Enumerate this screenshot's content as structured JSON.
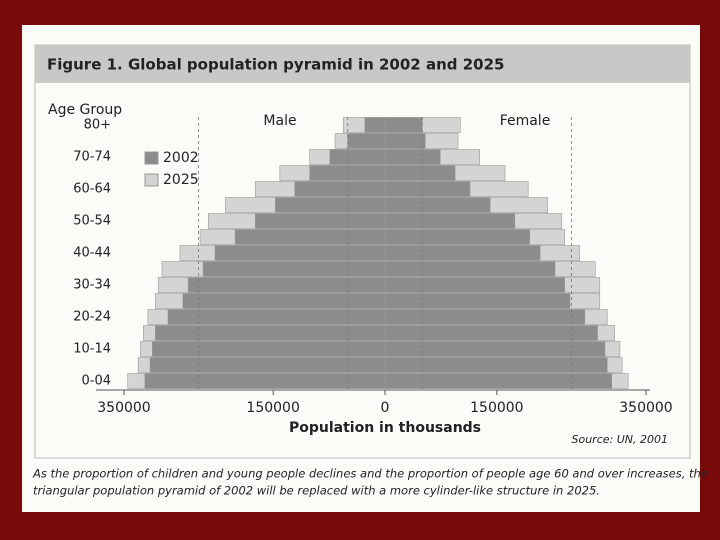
{
  "chart_data": {
    "type": "pyramid",
    "title": "Figure 1.  Global population pyramid in 2002 and 2025",
    "y_label": "Age Group",
    "x_label": "Population in thousands",
    "male_label": "Male",
    "female_label": "Female",
    "source": "Source: UN, 2001",
    "caption": [
      "As the proportion of children and young people declines and the proportion of people age 60 and over increases, the",
      "triangular population pyramid of 2002 will be replaced with a more cylinder-like structure in 2025."
    ],
    "categories": [
      "0-04",
      null,
      "10-14",
      null,
      "20-24",
      null,
      "30-34",
      null,
      "40-44",
      null,
      "50-54",
      null,
      "60-64",
      null,
      "70-74",
      null,
      "80+"
    ],
    "series": [
      {
        "name": "2025",
        "color": "#d4d4d4",
        "male": [
          345000,
          331000,
          328000,
          324000,
          318000,
          308000,
          304000,
          299000,
          275000,
          248000,
          237000,
          214000,
          174000,
          141000,
          101000,
          67000,
          56000
        ],
        "female": [
          326000,
          318000,
          315000,
          308000,
          298000,
          288000,
          288000,
          282000,
          261000,
          241000,
          237000,
          218000,
          192000,
          161000,
          127000,
          98000,
          101000
        ]
      },
      {
        "name": "2002",
        "color": "#8c8c8c",
        "male": [
          322000,
          315000,
          312000,
          308000,
          291000,
          271000,
          264000,
          244000,
          228000,
          201000,
          174000,
          147000,
          121000,
          101000,
          74000,
          50000,
          27000
        ],
        "female": [
          304000,
          298000,
          295000,
          285000,
          268000,
          248000,
          241000,
          228000,
          208000,
          194000,
          174000,
          141000,
          114000,
          94000,
          74000,
          54000,
          50000
        ]
      }
    ],
    "xlim": [
      -350000,
      350000
    ],
    "xticks": [
      {
        "value": -350000,
        "label": "350000"
      },
      {
        "value": -150000,
        "label": "150000"
      },
      0,
      150000,
      350000
    ],
    "xgrid": [
      -250000,
      -50000,
      50000,
      250000
    ]
  }
}
